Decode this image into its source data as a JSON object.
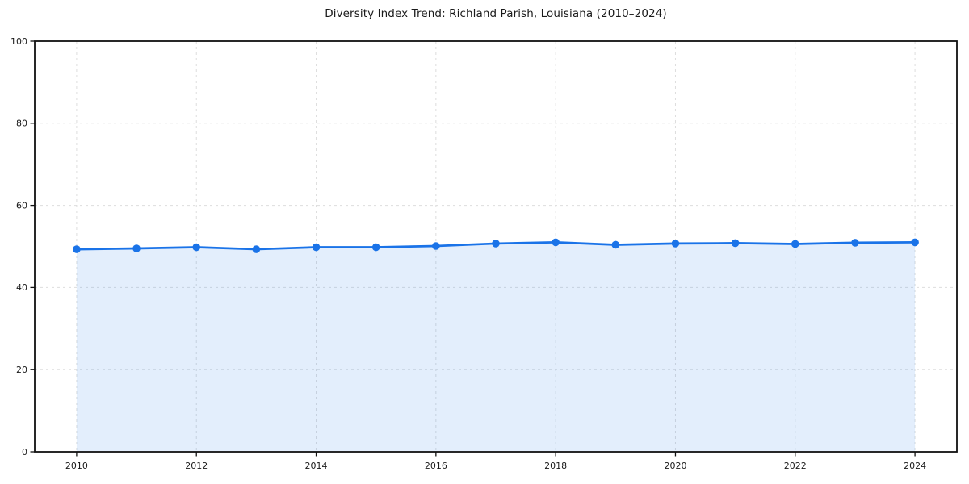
{
  "chart_data": {
    "type": "area",
    "title": "Diversity Index Trend: Richland Parish, Louisiana (2010–2024)",
    "x": [
      2010,
      2011,
      2012,
      2013,
      2014,
      2015,
      2016,
      2017,
      2018,
      2019,
      2020,
      2021,
      2022,
      2023,
      2024
    ],
    "values": [
      49.3,
      49.5,
      49.8,
      49.3,
      49.8,
      49.8,
      50.1,
      50.7,
      51.0,
      50.4,
      50.7,
      50.8,
      50.6,
      50.9,
      51.0
    ],
    "xlabel": "",
    "ylabel": "",
    "xlim": [
      2009.3,
      2024.7
    ],
    "ylim": [
      0,
      100
    ],
    "xticks": [
      2010,
      2012,
      2014,
      2016,
      2018,
      2020,
      2022,
      2024
    ],
    "yticks": [
      0,
      20,
      40,
      60,
      80,
      100
    ],
    "grid": true,
    "grid_style": "dashed",
    "legend": "none",
    "marker": "circle",
    "colors": {
      "line": "#1a73e8",
      "marker": "#1a73e8",
      "fill": "rgba(26,115,232,0.12)",
      "grid": "#dddddd",
      "spine": "#111111",
      "tick_text": "#1a1a1a",
      "background": "#ffffff"
    }
  }
}
